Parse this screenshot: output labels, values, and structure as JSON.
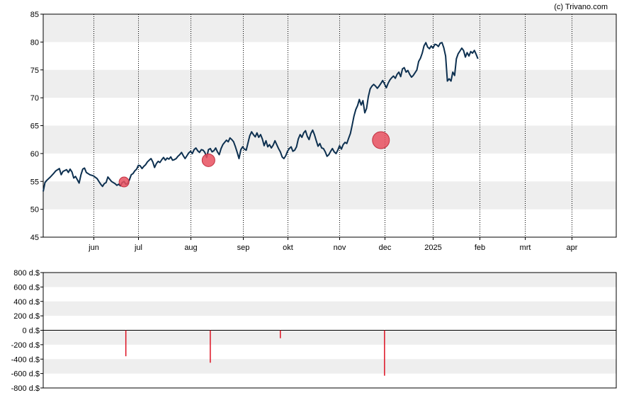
{
  "credit": "(c) Trivano.com",
  "colors": {
    "price_line": "#0d3050",
    "marker": "#e8505f",
    "bar": "#dd1122",
    "band": "#eeeeee",
    "axis": "#000000"
  },
  "chart_data": [
    {
      "type": "line",
      "name": "price",
      "ylim": [
        45,
        85
      ],
      "yticks": [
        "45",
        "50",
        "55",
        "60",
        "65",
        "70",
        "75",
        "80",
        "85"
      ],
      "xlim": [
        0,
        319
      ],
      "months": [
        {
          "label": "jun",
          "x": 28
        },
        {
          "label": "jul",
          "x": 53
        },
        {
          "label": "aug",
          "x": 82
        },
        {
          "label": "sep",
          "x": 111
        },
        {
          "label": "okt",
          "x": 136
        },
        {
          "label": "nov",
          "x": 165
        },
        {
          "label": "dec",
          "x": 190
        },
        {
          "label": "2025",
          "x": 217
        },
        {
          "label": "feb",
          "x": 243
        },
        {
          "label": "mrt",
          "x": 268
        },
        {
          "label": "apr",
          "x": 294
        }
      ],
      "points": [
        [
          0,
          53.2
        ],
        [
          1,
          54.8
        ],
        [
          2,
          55.2
        ],
        [
          4,
          55.8
        ],
        [
          6,
          56.5
        ],
        [
          7,
          56.9
        ],
        [
          9,
          57.3
        ],
        [
          10,
          56.2
        ],
        [
          11,
          56.8
        ],
        [
          13,
          57.1
        ],
        [
          14,
          56.6
        ],
        [
          15,
          57.2
        ],
        [
          16,
          56.7
        ],
        [
          17,
          55.6
        ],
        [
          18,
          55.9
        ],
        [
          19,
          55.3
        ],
        [
          20,
          54.7
        ],
        [
          21,
          56.2
        ],
        [
          22,
          57.2
        ],
        [
          23,
          57.4
        ],
        [
          24,
          56.6
        ],
        [
          26,
          56.2
        ],
        [
          28,
          56.0
        ],
        [
          30,
          55.5
        ],
        [
          31,
          55.0
        ],
        [
          32,
          54.5
        ],
        [
          33,
          54.1
        ],
        [
          34,
          54.6
        ],
        [
          35,
          54.8
        ],
        [
          36,
          55.8
        ],
        [
          37,
          55.4
        ],
        [
          38,
          55.0
        ],
        [
          40,
          54.6
        ],
        [
          41,
          54.3
        ],
        [
          42,
          54.5
        ],
        [
          43,
          54.2
        ],
        [
          44,
          54.8
        ],
        [
          45,
          55.0
        ],
        [
          46,
          54.5
        ],
        [
          47,
          54.6
        ],
        [
          48,
          55.3
        ],
        [
          49,
          56.2
        ],
        [
          50,
          56.4
        ],
        [
          51,
          56.9
        ],
        [
          52,
          57.2
        ],
        [
          53,
          57.9
        ],
        [
          54,
          57.8
        ],
        [
          55,
          57.3
        ],
        [
          56,
          57.7
        ],
        [
          57,
          58.0
        ],
        [
          58,
          58.5
        ],
        [
          59,
          58.8
        ],
        [
          60,
          59.1
        ],
        [
          61,
          58.5
        ],
        [
          62,
          57.5
        ],
        [
          63,
          58.2
        ],
        [
          64,
          58.6
        ],
        [
          65,
          58.4
        ],
        [
          66,
          58.9
        ],
        [
          67,
          59.3
        ],
        [
          68,
          58.8
        ],
        [
          69,
          59.2
        ],
        [
          70,
          59.0
        ],
        [
          71,
          59.4
        ],
        [
          72,
          58.8
        ],
        [
          73,
          58.9
        ],
        [
          74,
          59.1
        ],
        [
          75,
          59.5
        ],
        [
          76,
          59.8
        ],
        [
          77,
          60.2
        ],
        [
          78,
          59.6
        ],
        [
          79,
          59.1
        ],
        [
          80,
          59.6
        ],
        [
          81,
          60.1
        ],
        [
          82,
          60.4
        ],
        [
          83,
          60.0
        ],
        [
          84,
          60.7
        ],
        [
          85,
          61.0
        ],
        [
          86,
          60.5
        ],
        [
          87,
          60.2
        ],
        [
          88,
          60.7
        ],
        [
          89,
          60.6
        ],
        [
          90,
          60.2
        ],
        [
          91,
          59.3
        ],
        [
          92,
          60.7
        ],
        [
          93,
          60.9
        ],
        [
          94,
          60.3
        ],
        [
          95,
          60.5
        ],
        [
          96,
          61.0
        ],
        [
          97,
          60.3
        ],
        [
          98,
          59.8
        ],
        [
          99,
          60.9
        ],
        [
          100,
          61.6
        ],
        [
          101,
          62.0
        ],
        [
          102,
          62.4
        ],
        [
          103,
          62.1
        ],
        [
          104,
          62.8
        ],
        [
          105,
          62.5
        ],
        [
          106,
          62.1
        ],
        [
          107,
          61.2
        ],
        [
          108,
          60.2
        ],
        [
          109,
          59.1
        ],
        [
          110,
          60.7
        ],
        [
          111,
          61.2
        ],
        [
          112,
          60.8
        ],
        [
          113,
          60.6
        ],
        [
          114,
          61.9
        ],
        [
          115,
          63.2
        ],
        [
          116,
          63.9
        ],
        [
          117,
          63.4
        ],
        [
          118,
          63.0
        ],
        [
          119,
          63.7
        ],
        [
          120,
          62.9
        ],
        [
          121,
          63.4
        ],
        [
          122,
          62.6
        ],
        [
          123,
          61.4
        ],
        [
          124,
          62.3
        ],
        [
          125,
          61.2
        ],
        [
          126,
          61.6
        ],
        [
          127,
          61.0
        ],
        [
          128,
          61.5
        ],
        [
          129,
          62.3
        ],
        [
          130,
          61.6
        ],
        [
          131,
          60.9
        ],
        [
          132,
          60.3
        ],
        [
          133,
          59.4
        ],
        [
          134,
          59.1
        ],
        [
          135,
          59.6
        ],
        [
          136,
          60.4
        ],
        [
          137,
          60.9
        ],
        [
          138,
          61.2
        ],
        [
          139,
          60.4
        ],
        [
          140,
          60.6
        ],
        [
          141,
          61.2
        ],
        [
          142,
          62.6
        ],
        [
          143,
          63.4
        ],
        [
          144,
          62.9
        ],
        [
          145,
          63.7
        ],
        [
          146,
          64.1
        ],
        [
          147,
          63.1
        ],
        [
          148,
          62.5
        ],
        [
          149,
          63.6
        ],
        [
          150,
          64.2
        ],
        [
          151,
          63.4
        ],
        [
          152,
          62.3
        ],
        [
          153,
          61.3
        ],
        [
          154,
          61.8
        ],
        [
          155,
          61.0
        ],
        [
          156,
          60.9
        ],
        [
          157,
          60.3
        ],
        [
          158,
          59.5
        ],
        [
          159,
          59.8
        ],
        [
          160,
          60.4
        ],
        [
          161,
          60.9
        ],
        [
          162,
          60.3
        ],
        [
          163,
          60.0
        ],
        [
          164,
          60.6
        ],
        [
          165,
          61.4
        ],
        [
          166,
          60.8
        ],
        [
          167,
          61.6
        ],
        [
          168,
          62.0
        ],
        [
          169,
          61.8
        ],
        [
          170,
          62.7
        ],
        [
          171,
          63.6
        ],
        [
          172,
          65.1
        ],
        [
          173,
          66.7
        ],
        [
          174,
          67.9
        ],
        [
          175,
          68.6
        ],
        [
          176,
          69.7
        ],
        [
          177,
          68.7
        ],
        [
          178,
          69.5
        ],
        [
          179,
          67.3
        ],
        [
          180,
          68.1
        ],
        [
          181,
          70.2
        ],
        [
          182,
          71.6
        ],
        [
          183,
          72.1
        ],
        [
          184,
          72.4
        ],
        [
          185,
          72.1
        ],
        [
          186,
          71.7
        ],
        [
          187,
          72.1
        ],
        [
          188,
          72.6
        ],
        [
          189,
          73.1
        ],
        [
          190,
          72.5
        ],
        [
          191,
          71.8
        ],
        [
          192,
          72.6
        ],
        [
          193,
          73.2
        ],
        [
          194,
          73.6
        ],
        [
          195,
          73.9
        ],
        [
          196,
          73.5
        ],
        [
          197,
          74.2
        ],
        [
          198,
          74.6
        ],
        [
          199,
          73.8
        ],
        [
          200,
          75.2
        ],
        [
          201,
          75.4
        ],
        [
          202,
          74.6
        ],
        [
          203,
          74.9
        ],
        [
          204,
          74.2
        ],
        [
          205,
          73.7
        ],
        [
          206,
          74.0
        ],
        [
          207,
          74.5
        ],
        [
          208,
          75.0
        ],
        [
          209,
          76.5
        ],
        [
          210,
          77.1
        ],
        [
          211,
          78.0
        ],
        [
          212,
          79.3
        ],
        [
          213,
          79.9
        ],
        [
          214,
          79.1
        ],
        [
          215,
          78.8
        ],
        [
          216,
          79.3
        ],
        [
          217,
          78.9
        ],
        [
          218,
          79.6
        ],
        [
          219,
          79.5
        ],
        [
          220,
          79.2
        ],
        [
          221,
          79.8
        ],
        [
          222,
          79.9
        ],
        [
          223,
          79.0
        ],
        [
          224,
          77.5
        ],
        [
          225,
          73.0
        ],
        [
          226,
          73.4
        ],
        [
          227,
          73.0
        ],
        [
          228,
          74.6
        ],
        [
          229,
          74.0
        ],
        [
          230,
          77.0
        ],
        [
          231,
          77.9
        ],
        [
          232,
          78.4
        ],
        [
          233,
          78.9
        ],
        [
          234,
          78.5
        ],
        [
          235,
          77.3
        ],
        [
          236,
          78.1
        ],
        [
          237,
          77.5
        ],
        [
          238,
          78.3
        ],
        [
          239,
          78.0
        ],
        [
          240,
          78.5
        ],
        [
          241,
          77.8
        ],
        [
          242,
          77.0
        ]
      ],
      "markers": [
        {
          "x": 45,
          "y": 54.9,
          "size": "small"
        },
        {
          "x": 92,
          "y": 58.8,
          "size": "medium"
        },
        {
          "x": 188,
          "y": 62.4,
          "size": "large"
        }
      ]
    },
    {
      "type": "bar",
      "name": "volume",
      "ylim": [
        -800,
        800
      ],
      "yticks": [
        "800 d.$",
        "600 d.$",
        "400 d.$",
        "200 d.$",
        "0 d.$",
        "-200 d.$",
        "-400 d.$",
        "-600 d.$",
        "-800 d.$"
      ],
      "bars": [
        {
          "x": 46,
          "value": -360
        },
        {
          "x": 93,
          "value": -450
        },
        {
          "x": 132,
          "value": -110
        },
        {
          "x": 190,
          "value": -630
        }
      ]
    }
  ]
}
